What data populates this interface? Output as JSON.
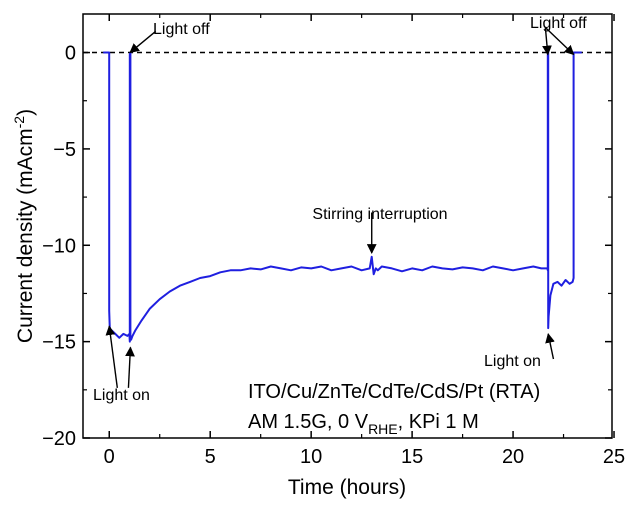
{
  "chart_data": {
    "type": "line",
    "title": "",
    "xlabel": "Time (hours)",
    "ylabel_parts": [
      "Current density (mAcm",
      "-2",
      ")"
    ],
    "xlim": [
      -1.3,
      24.9
    ],
    "ylim": [
      -20,
      2
    ],
    "x_ticks": [
      0,
      5,
      10,
      15,
      20,
      25
    ],
    "y_ticks": [
      0,
      -5,
      -10,
      -15,
      -20
    ],
    "x_tick_labels": [
      "0",
      "5",
      "10",
      "15",
      "20",
      "25"
    ],
    "y_tick_labels": [
      "0",
      "−5",
      "−10",
      "−15",
      "−20"
    ],
    "grid": false,
    "zero_line": {
      "y": 0,
      "style": "dashed",
      "color": "#000000"
    },
    "series": [
      {
        "color": "#1f1fe0",
        "x": [
          -0.3,
          0.0,
          0.0,
          0.02,
          0.05,
          0.1,
          0.3,
          0.5,
          0.7,
          0.9,
          1.0,
          1.02,
          1.02,
          1.05,
          1.05,
          1.08,
          1.15,
          1.3,
          1.6,
          2.0,
          2.5,
          3.0,
          3.5,
          4.0,
          4.5,
          5.0,
          5.5,
          6.0,
          6.5,
          7.0,
          7.5,
          8.0,
          8.5,
          9.0,
          9.5,
          10.0,
          10.5,
          11.0,
          11.5,
          12.0,
          12.5,
          12.9,
          13.0,
          13.1,
          13.2,
          13.3,
          13.5,
          14.0,
          14.5,
          15.0,
          15.5,
          16.0,
          16.5,
          17.0,
          17.5,
          18.0,
          18.5,
          19.0,
          19.5,
          20.0,
          20.5,
          21.0,
          21.4,
          21.7,
          21.72,
          21.72,
          21.74,
          21.74,
          21.76,
          21.85,
          22.0,
          22.2,
          22.4,
          22.6,
          22.8,
          22.95,
          23.0,
          23.0,
          23.05,
          23.4
        ],
        "y": [
          0.0,
          0.0,
          -13.4,
          -14.2,
          -14.5,
          -14.4,
          -14.6,
          -14.8,
          -14.6,
          -14.7,
          -14.6,
          -15.0,
          -0.1,
          0.0,
          -14.9,
          -14.9,
          -14.7,
          -14.4,
          -13.9,
          -13.3,
          -12.8,
          -12.4,
          -12.1,
          -11.9,
          -11.7,
          -11.6,
          -11.4,
          -11.3,
          -11.3,
          -11.2,
          -11.25,
          -11.1,
          -11.2,
          -11.3,
          -11.15,
          -11.2,
          -11.1,
          -11.3,
          -11.2,
          -11.1,
          -11.3,
          -11.2,
          -10.6,
          -11.5,
          -11.2,
          -11.3,
          -11.1,
          -11.2,
          -11.35,
          -11.2,
          -11.3,
          -11.1,
          -11.2,
          -11.25,
          -11.15,
          -11.2,
          -11.3,
          -11.1,
          -11.2,
          -11.3,
          -11.2,
          -11.1,
          -11.2,
          -11.2,
          -11.3,
          0.0,
          0.0,
          -14.3,
          -13.7,
          -12.6,
          -12.0,
          -11.9,
          -12.1,
          -11.8,
          -12.0,
          -11.9,
          -11.7,
          0.0,
          0.0,
          0.0
        ]
      }
    ],
    "annotations": [
      {
        "text": "Light off",
        "text_pos": [
          2.3,
          1.1
        ],
        "arrow_to": [
          1.03,
          0.0
        ]
      },
      {
        "text": "Light on",
        "text_pos": [
          0.4,
          -17.4
        ],
        "arrow_to": [
          0.0,
          -14.2
        ]
      },
      {
        "text": "Light on",
        "text_pos": [
          0.95,
          -17.4
        ],
        "arrow_to": [
          1.05,
          -15.3
        ]
      },
      {
        "text": "Stirring interruption",
        "text_pos": [
          13.0,
          -8.3
        ],
        "arrow_to": [
          13.0,
          -10.4
        ]
      },
      {
        "text": "Light off",
        "text_pos": [
          21.6,
          1.3
        ],
        "arrow_to": [
          21.72,
          -0.1
        ]
      },
      {
        "text": "Light off",
        "text_pos": [
          21.6,
          1.3
        ],
        "arrow_to": [
          23.0,
          -0.1
        ]
      },
      {
        "text": "Light on",
        "text_pos": [
          22.0,
          -15.9
        ],
        "arrow_to": [
          21.74,
          -14.6
        ]
      }
    ],
    "legend_lines": [
      [
        "ITO/Cu/ZnTe/CdTe/CdS/Pt (RTA)"
      ],
      [
        "AM 1.5G, 0 V",
        "RHE",
        ", KPi 1 M"
      ]
    ],
    "labels": {
      "light_off": "Light off",
      "light_on": "Light on",
      "stirring": "Stirring interruption",
      "legend_line1": "ITO/Cu/ZnTe/CdTe/CdS/Pt (RTA)",
      "legend_line2_a": "AM 1.5G, 0 V",
      "legend_line2_sub": "RHE",
      "legend_line2_b": ", KPi 1 M"
    }
  }
}
